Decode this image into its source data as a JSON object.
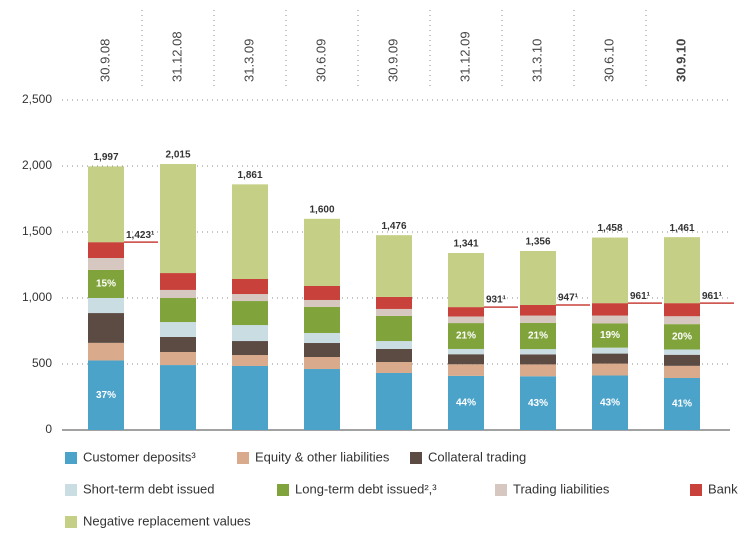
{
  "chart_data": {
    "type": "stacked_bar",
    "categories": [
      "30.9.08",
      "31.12.08",
      "31.3.09",
      "30.6.09",
      "30.9.09",
      "31.12.09",
      "31.3.10",
      "30.6.10",
      "30.9.10"
    ],
    "ylim": [
      0,
      2500
    ],
    "yticks": [
      0,
      {
        "value": 500,
        "label": "500"
      },
      {
        "value": 1000,
        "label": "1,000"
      },
      {
        "value": 1500,
        "label": "1,500"
      },
      {
        "value": 2000,
        "label": "2,000"
      },
      {
        "value": 2500,
        "label": "2,500"
      }
    ],
    "grid": true,
    "legend": "bottom",
    "series": [
      {
        "name": "Customer deposits³",
        "color": "#4ba3c9",
        "values": [
          527,
          492,
          485,
          462,
          432,
          410,
          407,
          413,
          394
        ],
        "share_values": [
          37,
          null,
          null,
          null,
          null,
          44,
          43,
          43,
          41
        ],
        "share_labels": [
          "37%",
          null,
          null,
          null,
          null,
          "44%",
          "43%",
          "43%",
          "41%"
        ]
      },
      {
        "name": "Equity & other liabilities",
        "color": "#d9aa8b",
        "values": [
          133,
          99,
          83,
          91,
          83,
          88,
          90,
          90,
          92
        ]
      },
      {
        "name": "Collateral trading",
        "color": "#5b4b43",
        "values": [
          226,
          114,
          106,
          106,
          99,
          76,
          76,
          76,
          84
        ]
      },
      {
        "name": "Short-term debt issued",
        "color": "#c9dde3",
        "values": [
          114,
          113,
          121,
          76,
          60,
          40,
          40,
          45,
          40
        ]
      },
      {
        "name": "Long-term debt issued²,³",
        "color": "#80a43b",
        "values": [
          213,
          182,
          182,
          197,
          190,
          196,
          199,
          183,
          192
        ],
        "share_values": [
          15,
          null,
          null,
          null,
          null,
          21,
          21,
          19,
          20
        ],
        "share_labels": [
          "15%",
          null,
          null,
          null,
          null,
          "21%",
          "21%",
          "19%",
          "20%"
        ]
      },
      {
        "name": "Trading liabilities",
        "color": "#d7c7c1",
        "values": [
          90,
          61,
          53,
          53,
          53,
          50,
          55,
          60,
          60
        ]
      },
      {
        "name": "Banks",
        "color": "#c8423b",
        "values": [
          120,
          128,
          114,
          106,
          91,
          71,
          80,
          94,
          99
        ]
      },
      {
        "name": "Negative replacement values",
        "color": "#c6cf86",
        "values": [
          574,
          826,
          717,
          509,
          468,
          410,
          409,
          497,
          500
        ]
      }
    ],
    "totals": [
      1997,
      2015,
      1861,
      1600,
      1476,
      1341,
      1356,
      1458,
      1461
    ],
    "total_labels": [
      "1,997",
      "2,015",
      "1,861",
      "1,600",
      "1,476",
      "1,341",
      "1,356",
      "1,458",
      "1,461"
    ],
    "reference_values": [
      1423,
      null,
      null,
      null,
      null,
      931,
      947,
      961,
      961
    ],
    "reference_labels": [
      "1,423¹",
      null,
      null,
      null,
      null,
      "931¹",
      "947¹",
      "961¹",
      "961¹"
    ],
    "reference_color": "#c8423b"
  }
}
